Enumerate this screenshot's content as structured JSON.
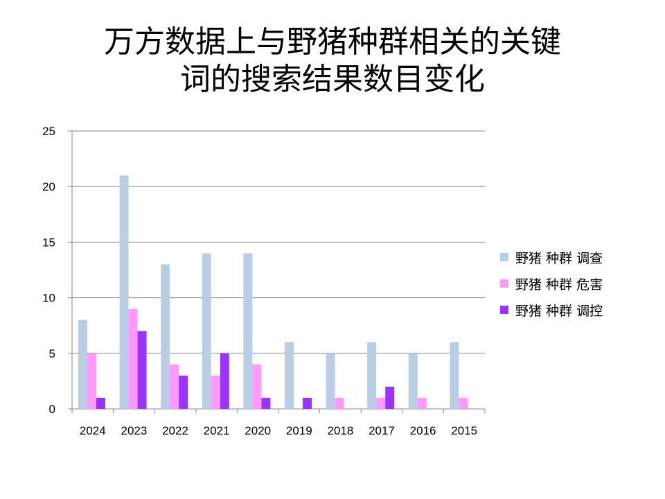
{
  "chart_data": {
    "type": "bar",
    "title_lines": [
      "万方数据上与野猪种群相关的关键",
      "词的搜索结果数目变化"
    ],
    "categories": [
      "2024",
      "2023",
      "2022",
      "2021",
      "2020",
      "2019",
      "2018",
      "2017",
      "2016",
      "2015"
    ],
    "series": [
      {
        "name": "野猪 种群 调查",
        "color": "#b9cde5",
        "values": [
          8,
          21,
          13,
          14,
          14,
          6,
          5,
          6,
          5,
          6
        ]
      },
      {
        "name": "野猪 种群 危害",
        "color": "#ff99ff",
        "values": [
          5,
          9,
          4,
          3,
          4,
          0,
          1,
          1,
          1,
          1
        ]
      },
      {
        "name": "野猪 种群 调控",
        "color": "#9933ff",
        "values": [
          1,
          7,
          3,
          5,
          1,
          1,
          0,
          2,
          0,
          0
        ]
      }
    ],
    "yticks": [
      "0",
      "5",
      "10",
      "15",
      "20",
      "25"
    ],
    "ylim": [
      0,
      25
    ],
    "grid": true,
    "legend_position": "right"
  }
}
